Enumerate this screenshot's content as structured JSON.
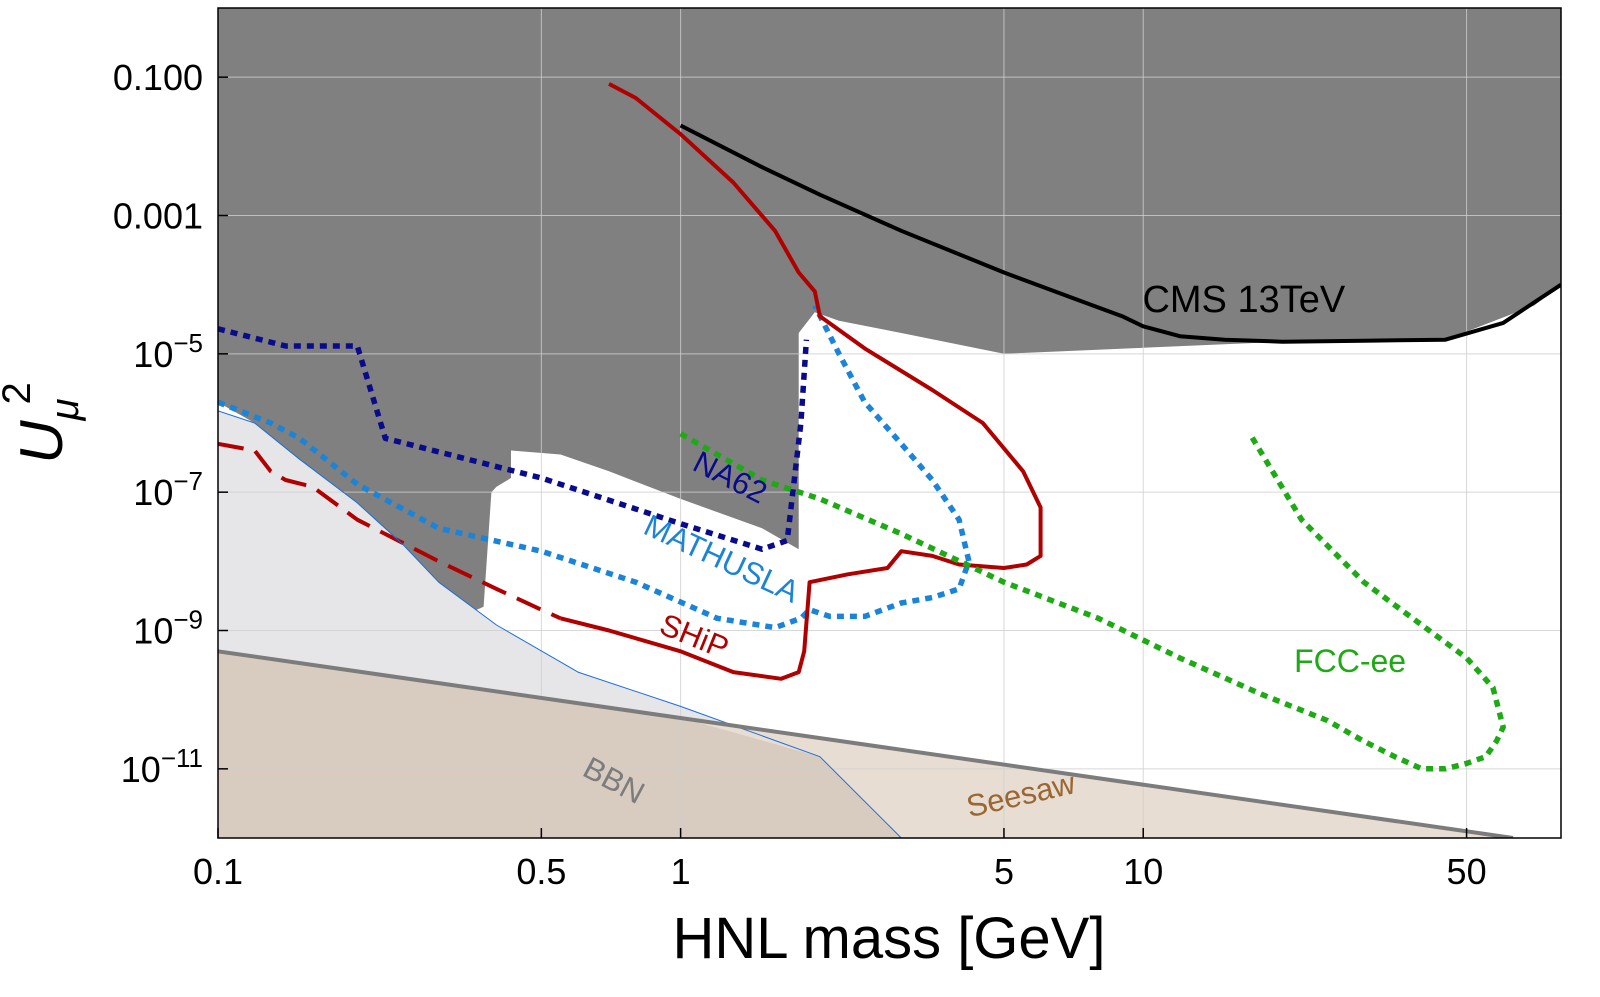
{
  "chart_data": {
    "type": "line",
    "title": "",
    "xlabel": "HNL mass [GeV]",
    "ylabel_main": "U",
    "ylabel_sub": "μ",
    "ylabel_sup": "2",
    "xscale": "log",
    "yscale": "log",
    "xlim": [
      0.1,
      80
    ],
    "ylim": [
      1e-12,
      1
    ],
    "grid": true,
    "x_ticks": [
      {
        "value": 0.1,
        "label": "0.1"
      },
      {
        "value": 0.5,
        "label": "0.5"
      },
      {
        "value": 1,
        "label": "1"
      },
      {
        "value": 5,
        "label": "5"
      },
      {
        "value": 10,
        "label": "10"
      },
      {
        "value": 50,
        "label": "50"
      }
    ],
    "y_ticks": [
      {
        "value": 0.1,
        "label": "0.100"
      },
      {
        "value": 0.001,
        "label": "0.001"
      },
      {
        "value": 1e-05,
        "mant": "10",
        "exp": "−5"
      },
      {
        "value": 1e-07,
        "mant": "10",
        "exp": "−7"
      },
      {
        "value": 1e-09,
        "mant": "10",
        "exp": "−9"
      },
      {
        "value": 1e-11,
        "mant": "10",
        "exp": "−11"
      }
    ],
    "regions": [
      {
        "name": "excluded",
        "color": "#808080",
        "points": [
          [
            0.1,
            1
          ],
          [
            80,
            1
          ],
          [
            80,
            0.0001
          ],
          [
            70,
            5e-05
          ],
          [
            45,
            1.6e-05
          ],
          [
            20,
            1.5e-05
          ],
          [
            5,
            1e-05
          ],
          [
            3,
            2e-05
          ],
          [
            2.2,
            3e-05
          ],
          [
            1.95,
            4e-05
          ],
          [
            1.8,
            2e-05
          ],
          [
            1.8,
            1.5e-08
          ],
          [
            1.5,
            3e-08
          ],
          [
            1.0,
            8e-08
          ],
          [
            0.7,
            2e-07
          ],
          [
            0.55,
            3.5e-07
          ],
          [
            0.43,
            4e-07
          ],
          [
            0.43,
            1.6e-07
          ],
          [
            0.4,
            1.2e-07
          ],
          [
            0.39,
            1e-07
          ],
          [
            0.375,
            2.2e-09
          ],
          [
            0.35,
            1.8e-09
          ],
          [
            0.3,
            1.5e-09
          ],
          [
            0.29,
            1e-09
          ],
          [
            0.285,
            1e-09
          ],
          [
            0.28,
            2e-09
          ],
          [
            0.27,
            1.2e-09
          ],
          [
            0.26,
            1.5e-09
          ],
          [
            0.255,
            4e-09
          ],
          [
            0.25,
            1.5e-09
          ],
          [
            0.24,
            2e-09
          ],
          [
            0.23,
            4e-09
          ],
          [
            0.225,
            2e-09
          ],
          [
            0.22,
            1.5e-09
          ],
          [
            0.21,
            4e-09
          ],
          [
            0.19,
            5e-09
          ],
          [
            0.185,
            1e-08
          ],
          [
            0.18,
            3e-08
          ],
          [
            0.16,
            8e-08
          ],
          [
            0.14,
            4e-07
          ],
          [
            0.12,
            1e-06
          ],
          [
            0.1,
            2e-06
          ]
        ]
      },
      {
        "name": "bbn-region",
        "color": "#e6e6e8",
        "points": [
          [
            0.1,
            1.5e-06
          ],
          [
            0.12,
            1e-06
          ],
          [
            0.15,
            3e-07
          ],
          [
            0.2,
            7e-08
          ],
          [
            0.25,
            1.8e-08
          ],
          [
            0.3,
            5e-09
          ],
          [
            0.4,
            1.2e-09
          ],
          [
            0.6,
            2.5e-10
          ],
          [
            1,
            8e-11
          ],
          [
            2,
            1.5e-11
          ],
          [
            3,
            1e-12
          ],
          [
            0.1,
            1e-12
          ]
        ]
      },
      {
        "name": "seesaw-region",
        "color": "#e8ddd2",
        "points": [
          [
            0.1,
            5e-10
          ],
          [
            63,
            1e-12
          ],
          [
            0.1,
            1e-12
          ]
        ]
      },
      {
        "name": "overlap-region",
        "color": "#d8cbc0",
        "points": [
          [
            0.1,
            5e-10
          ],
          [
            0.5,
            1e-10
          ],
          [
            1,
            5.5e-11
          ],
          [
            2,
            1.5e-11
          ],
          [
            3,
            1e-12
          ],
          [
            0.1,
            1e-12
          ]
        ]
      }
    ],
    "series": [
      {
        "name": "CMS 13TeV",
        "color": "#000000",
        "style": "solid",
        "x": [
          1,
          1.5,
          2,
          3,
          5,
          7,
          9,
          10,
          12,
          15,
          20,
          30,
          45,
          60,
          80
        ],
        "y": [
          0.02,
          0.005,
          0.002,
          0.0006,
          0.00015,
          6.5e-05,
          3.5e-05,
          2.5e-05,
          1.8e-05,
          1.6e-05,
          1.5e-05,
          1.55e-05,
          1.6e-05,
          2.8e-05,
          0.0001
        ]
      },
      {
        "name": "NA62",
        "color": "#0a0a8c",
        "style": "dotted",
        "x": [
          0.1,
          0.14,
          0.2,
          0.23,
          0.5,
          1,
          1.5,
          1.7,
          1.82,
          1.87
        ],
        "y": [
          2.3e-05,
          1.3e-05,
          1.3e-05,
          6e-07,
          1.6e-07,
          3.5e-08,
          1.5e-08,
          2e-08,
          1e-06,
          1.6e-05
        ]
      },
      {
        "name": "MATHUSLA",
        "color": "#1c84d8",
        "style": "dotted",
        "x": [
          0.1,
          0.13,
          0.15,
          0.2,
          0.3,
          0.5,
          0.8,
          1.2,
          1.6,
          1.82,
          1.9,
          2.1,
          2.5,
          3,
          3.5,
          4,
          4.2,
          4,
          3.5,
          3,
          2.5,
          2.2,
          1.95
        ],
        "y": [
          2e-06,
          1e-06,
          6e-07,
          1.3e-07,
          3e-08,
          1.4e-08,
          5e-09,
          1.5e-09,
          1.1e-09,
          1.5e-09,
          2e-09,
          1.6e-09,
          1.6e-09,
          2.5e-09,
          3e-09,
          4e-09,
          1e-08,
          4e-08,
          1.5e-07,
          5e-07,
          2e-06,
          1e-05,
          5e-05
        ]
      },
      {
        "name": "SHiP",
        "color": "#b00000",
        "style": "solid",
        "x": [
          0.55,
          0.7,
          1,
          1.3,
          1.65,
          1.8,
          1.85,
          1.9,
          2.3,
          2.8,
          3,
          3.5,
          4,
          5,
          5.6,
          6,
          6,
          5.5,
          4.5,
          3.5,
          2.5,
          2,
          1.95,
          1.8,
          1.6,
          1.3,
          1,
          0.8,
          0.7
        ],
        "y": [
          1.5e-09,
          1e-09,
          5e-10,
          2.5e-10,
          2e-10,
          2.5e-10,
          5e-10,
          5e-09,
          6.5e-09,
          8e-09,
          1.4e-08,
          1.2e-08,
          9e-09,
          8e-09,
          9e-09,
          1.2e-08,
          6e-08,
          2e-07,
          1e-06,
          3e-06,
          1.2e-05,
          3.5e-05,
          8e-05,
          0.00015,
          0.0006,
          0.003,
          0.015,
          0.05,
          0.08
        ]
      },
      {
        "name": "SHiP-dashed",
        "color": "#b00000",
        "style": "dashed",
        "x": [
          0.1,
          0.12,
          0.13,
          0.14,
          0.16,
          0.2,
          0.3,
          0.4,
          0.5,
          0.55
        ],
        "y": [
          5e-07,
          4e-07,
          2e-07,
          1.5e-07,
          1.2e-07,
          4e-08,
          1e-08,
          4e-09,
          2e-09,
          1.5e-09
        ]
      },
      {
        "name": "FCC-ee",
        "color": "#1eaa14",
        "style": "dotted",
        "x": [
          1,
          1.5,
          2,
          3,
          5,
          8,
          12,
          18,
          25,
          30,
          35,
          40,
          45,
          50,
          55,
          58,
          60,
          57,
          50,
          40,
          30,
          22,
          17
        ],
        "y": [
          7e-07,
          1.5e-07,
          8e-08,
          2.5e-08,
          5e-09,
          1.5e-09,
          4e-10,
          1.2e-10,
          5e-11,
          2.5e-11,
          1.5e-11,
          1e-11,
          1e-11,
          1.2e-11,
          1.5e-11,
          2.5e-11,
          4e-11,
          1.5e-10,
          4e-10,
          1.2e-09,
          5e-09,
          4e-08,
          7e-07
        ]
      },
      {
        "name": "BBN",
        "color": "#1c6ed6",
        "style": "thin",
        "x": [
          0.1,
          0.12,
          0.15,
          0.2,
          0.25,
          0.3,
          0.4,
          0.6,
          1,
          2,
          3
        ],
        "y": [
          1.5e-06,
          1e-06,
          3e-07,
          7e-08,
          1.8e-08,
          5e-09,
          1.2e-09,
          2.5e-10,
          8e-11,
          1.5e-11,
          1e-12
        ]
      },
      {
        "name": "Seesaw",
        "color": "#7c7c7c",
        "style": "thick",
        "x": [
          0.1,
          63
        ],
        "y": [
          5e-10,
          1e-12
        ]
      }
    ],
    "annotations": [
      {
        "text": "CMS 13TeV",
        "x": 16.5,
        "y": 4e-05,
        "color": "#000000",
        "rotate": 0,
        "size": 38
      },
      {
        "text": "NA62",
        "x": 1.25,
        "y": 1.2e-07,
        "color": "#0a0a8c",
        "rotate": 27,
        "size": 31
      },
      {
        "text": "MATHUSLA",
        "x": 1.2,
        "y": 8e-09,
        "color": "#1c84d8",
        "rotate": 25,
        "size": 31
      },
      {
        "text": "SHiP",
        "x": 1.05,
        "y": 6e-10,
        "color": "#b00000",
        "rotate": 22,
        "size": 31
      },
      {
        "text": "FCC-ee",
        "x": 28,
        "y": 2.5e-10,
        "color": "#1eaa14",
        "rotate": 0,
        "size": 32
      },
      {
        "text": "BBN",
        "x": 0.7,
        "y": 5e-12,
        "color": "#7c7c7c",
        "rotate": 28,
        "size": 31
      },
      {
        "text": "Seesaw",
        "x": 5.5,
        "y": 3e-12,
        "color": "#9a6632",
        "rotate": -13,
        "size": 31
      }
    ]
  }
}
